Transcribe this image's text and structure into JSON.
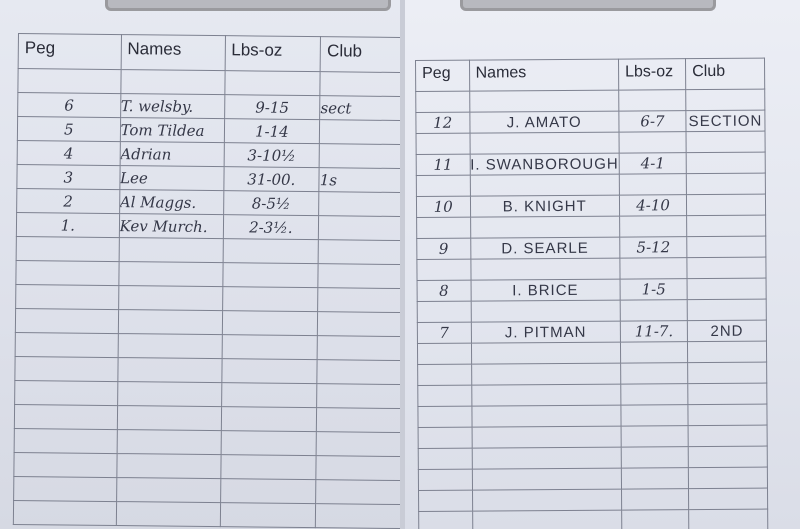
{
  "headers": {
    "peg": "Peg",
    "names": "Names",
    "weight": "Lbs-oz",
    "club": "Club"
  },
  "left_sheet": {
    "rows": [
      {
        "peg": "6",
        "name": "T. welsby.",
        "weight": "9-15",
        "club": "sect"
      },
      {
        "peg": "5",
        "name": "Tom Tildea",
        "weight": "1-14",
        "club": ""
      },
      {
        "peg": "4",
        "name": "Adrian",
        "weight": "3-10½",
        "club": ""
      },
      {
        "peg": "3",
        "name": "Lee",
        "weight": "31-00.",
        "club": "1s"
      },
      {
        "peg": "2",
        "name": "Al Maggs.",
        "weight": "8-5½",
        "club": ""
      },
      {
        "peg": "1.",
        "name": "Kev Murch.",
        "weight": "2-3½.",
        "club": ""
      }
    ]
  },
  "right_sheet": {
    "rows": [
      {
        "peg": "12",
        "name": "J. AMATO",
        "weight": "6-7",
        "club": "SECTION"
      },
      {
        "peg": "11",
        "name": "I. SWANBOROUGH",
        "weight": "4-1",
        "club": ""
      },
      {
        "peg": "10",
        "name": "B. KNIGHT",
        "weight": "4-10",
        "club": ""
      },
      {
        "peg": "9",
        "name": "D. SEARLE",
        "weight": "5-12",
        "club": ""
      },
      {
        "peg": "8",
        "name": "I. BRICE",
        "weight": "1-5",
        "club": ""
      },
      {
        "peg": "7",
        "name": "J. PITMAN",
        "weight": "11-7.",
        "club": "2ND"
      }
    ]
  }
}
